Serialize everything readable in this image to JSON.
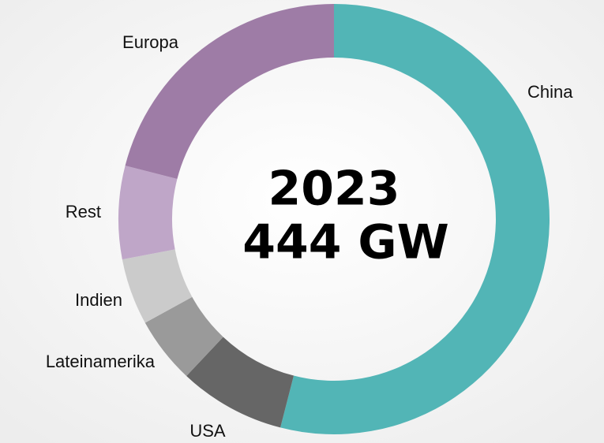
{
  "chart_data": {
    "type": "donut",
    "title": [
      "2023",
      "444 GW"
    ],
    "categories": [
      "China",
      "USA",
      "Lateinamerika",
      "Indien",
      "Rest",
      "Europa"
    ],
    "values": [
      54,
      8,
      5,
      5,
      7,
      21
    ],
    "colors": [
      "#52b5b6",
      "#666666",
      "#9a9a9a",
      "#cbcbcb",
      "#bfa6c8",
      "#9e7ca6"
    ]
  }
}
